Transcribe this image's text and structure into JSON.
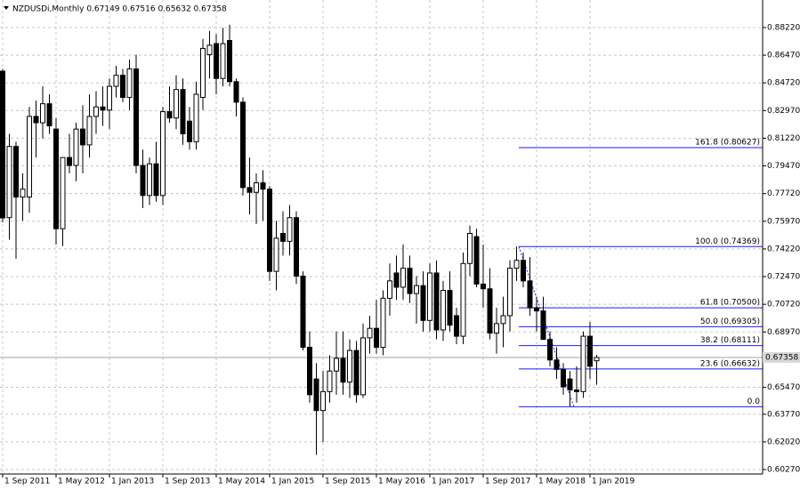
{
  "chart_data": {
    "type": "candlestick",
    "title": "NZDUSDi,Monthly  0.67149 0.67516 0.65632 0.67358",
    "categories": [
      "1 Sep 2011",
      null,
      null,
      null,
      null,
      null,
      null,
      null,
      "1 May 2012",
      null,
      null,
      null,
      null,
      null,
      null,
      null,
      "1 Jan 2013",
      null,
      null,
      null,
      null,
      null,
      null,
      null,
      "1 Sep 2013",
      null,
      null,
      null,
      null,
      null,
      null,
      null,
      "1 May 2014",
      null,
      null,
      null,
      null,
      null,
      null,
      null,
      "1 Jan 2015",
      null,
      null,
      null,
      null,
      null,
      null,
      null,
      "1 Sep 2015",
      null,
      null,
      null,
      null,
      null,
      null,
      null,
      "1 May 2016",
      null,
      null,
      null,
      null,
      null,
      null,
      null,
      "1 Jan 2017",
      null,
      null,
      null,
      null,
      null,
      null,
      null,
      "1 Sep 2017",
      null,
      null,
      null,
      null,
      null,
      null,
      null,
      "1 May 2018",
      null,
      null,
      null,
      null,
      null,
      null,
      null,
      "1 Jan 2019",
      null
    ],
    "open": [
      0.8546,
      0.762,
      0.807,
      0.775,
      0.775,
      0.826,
      0.822,
      0.834,
      0.818,
      0.755,
      0.8,
      0.795,
      0.818,
      0.808,
      0.826,
      0.832,
      0.83,
      0.845,
      0.852,
      0.838,
      0.856,
      0.795,
      0.776,
      0.796,
      0.776,
      0.829,
      0.825,
      0.843,
      0.823,
      0.81,
      0.838,
      0.865,
      0.872,
      0.85,
      0.874,
      0.848,
      0.835,
      0.781,
      0.778,
      0.784,
      0.78,
      0.728,
      0.752,
      0.747,
      0.762,
      0.725,
      0.68,
      0.66,
      0.64,
      0.652,
      0.665,
      0.673,
      0.658,
      0.678,
      0.65,
      0.686,
      0.692,
      0.68,
      0.711,
      0.727,
      0.718,
      0.73,
      0.714,
      0.719,
      0.697,
      0.727,
      0.691,
      0.716,
      0.7,
      0.687,
      0.733,
      0.75,
      0.72,
      0.717,
      0.689,
      0.695,
      0.7,
      0.73,
      0.735,
      0.722,
      0.705,
      0.703,
      0.685,
      0.672,
      0.666,
      0.66,
      0.653,
      0.652,
      0.687,
      0.67149
    ],
    "high": [
      0.856,
      0.815,
      0.81,
      0.79,
      0.832,
      0.836,
      0.845,
      0.84,
      0.825,
      0.8,
      0.815,
      0.822,
      0.833,
      0.84,
      0.842,
      0.845,
      0.85,
      0.858,
      0.856,
      0.862,
      0.865,
      0.805,
      0.8,
      0.81,
      0.832,
      0.845,
      0.852,
      0.85,
      0.832,
      0.848,
      0.875,
      0.88,
      0.878,
      0.882,
      0.884,
      0.85,
      0.838,
      0.8,
      0.79,
      0.792,
      0.782,
      0.76,
      0.766,
      0.77,
      0.766,
      0.728,
      0.69,
      0.67,
      0.665,
      0.675,
      0.69,
      0.69,
      0.685,
      0.684,
      0.695,
      0.7,
      0.71,
      0.716,
      0.733,
      0.738,
      0.745,
      0.738,
      0.725,
      0.728,
      0.733,
      0.735,
      0.722,
      0.728,
      0.705,
      0.74,
      0.757,
      0.755,
      0.745,
      0.73,
      0.705,
      0.712,
      0.735,
      0.7437,
      0.74,
      0.737,
      0.712,
      0.712,
      0.69,
      0.68,
      0.67,
      0.665,
      0.668,
      0.69,
      0.696,
      0.67516
    ],
    "low": [
      0.759,
      0.748,
      0.736,
      0.76,
      0.765,
      0.8,
      0.812,
      0.815,
      0.745,
      0.744,
      0.79,
      0.785,
      0.79,
      0.8,
      0.815,
      0.82,
      0.818,
      0.838,
      0.835,
      0.83,
      0.79,
      0.768,
      0.77,
      0.772,
      0.77,
      0.822,
      0.818,
      0.808,
      0.805,
      0.805,
      0.83,
      0.85,
      0.84,
      0.845,
      0.845,
      0.826,
      0.776,
      0.764,
      0.758,
      0.76,
      0.722,
      0.716,
      0.738,
      0.738,
      0.72,
      0.678,
      0.645,
      0.612,
      0.62,
      0.645,
      0.65,
      0.65,
      0.648,
      0.645,
      0.648,
      0.676,
      0.676,
      0.675,
      0.7,
      0.71,
      0.71,
      0.708,
      0.695,
      0.69,
      0.69,
      0.685,
      0.684,
      0.69,
      0.682,
      0.682,
      0.725,
      0.718,
      0.705,
      0.685,
      0.676,
      0.68,
      0.69,
      0.722,
      0.718,
      0.7,
      0.69,
      0.685,
      0.668,
      0.66,
      0.65,
      0.6424,
      0.645,
      0.648,
      0.66,
      0.65632
    ],
    "close": [
      0.7618,
      0.807,
      0.775,
      0.78,
      0.826,
      0.822,
      0.834,
      0.82,
      0.755,
      0.8,
      0.795,
      0.818,
      0.808,
      0.826,
      0.832,
      0.83,
      0.845,
      0.852,
      0.838,
      0.856,
      0.795,
      0.776,
      0.796,
      0.776,
      0.829,
      0.825,
      0.843,
      0.815,
      0.81,
      0.84,
      0.869,
      0.871,
      0.85,
      0.872,
      0.848,
      0.835,
      0.781,
      0.778,
      0.784,
      0.78,
      0.728,
      0.749,
      0.747,
      0.762,
      0.725,
      0.68,
      0.65,
      0.64,
      0.652,
      0.665,
      0.673,
      0.658,
      0.678,
      0.65,
      0.686,
      0.692,
      0.68,
      0.711,
      0.722,
      0.718,
      0.73,
      0.714,
      0.719,
      0.697,
      0.727,
      0.691,
      0.716,
      0.694,
      0.687,
      0.733,
      0.752,
      0.72,
      0.717,
      0.689,
      0.695,
      0.7,
      0.73,
      0.735,
      0.722,
      0.705,
      0.703,
      0.685,
      0.672,
      0.666,
      0.655,
      0.653,
      0.652,
      0.687,
      0.668,
      0.67358
    ],
    "up_color": "#ffffff",
    "down_color": "#000000",
    "ylim": [
      0.5999,
      0.8996
    ],
    "yticks": [
      {
        "value": 0.8822,
        "label": "0.88220"
      },
      {
        "value": 0.8647,
        "label": "0.86470"
      },
      {
        "value": 0.8472,
        "label": "0.84720"
      },
      {
        "value": 0.8297,
        "label": "0.82970"
      },
      {
        "value": 0.8122,
        "label": "0.81220"
      },
      {
        "value": 0.7947,
        "label": "0.79470"
      },
      {
        "value": 0.7772,
        "label": "0.77720"
      },
      {
        "value": 0.7597,
        "label": "0.75970"
      },
      {
        "value": 0.7422,
        "label": "0.74220"
      },
      {
        "value": 0.7247,
        "label": "0.72470"
      },
      {
        "value": 0.7072,
        "label": "0.70720"
      },
      {
        "value": 0.6897,
        "label": "0.68970"
      },
      {
        "value": 0.6547,
        "label": "0.65470"
      },
      {
        "value": 0.6377,
        "label": "0.63770"
      },
      {
        "value": 0.6202,
        "label": "0.62020"
      },
      {
        "value": 0.6027,
        "label": "0.60270"
      }
    ],
    "grid": true,
    "current_price": 0.67358,
    "fibonacci": {
      "color": "#1a1aff",
      "levels": [
        {
          "label": "161.8 (0.80627)",
          "value": 0.80627
        },
        {
          "label": "100.0 (0.74369)",
          "value": 0.74369
        },
        {
          "label": "61.8 (0.70500)",
          "value": 0.705
        },
        {
          "label": "50.0 (0.69305)",
          "value": 0.69305
        },
        {
          "label": "38.2 (0.68111)",
          "value": 0.68111
        },
        {
          "label": "23.6 (0.66632)",
          "value": 0.66632
        },
        {
          "label": "0.0",
          "value": 0.6424
        }
      ]
    }
  }
}
